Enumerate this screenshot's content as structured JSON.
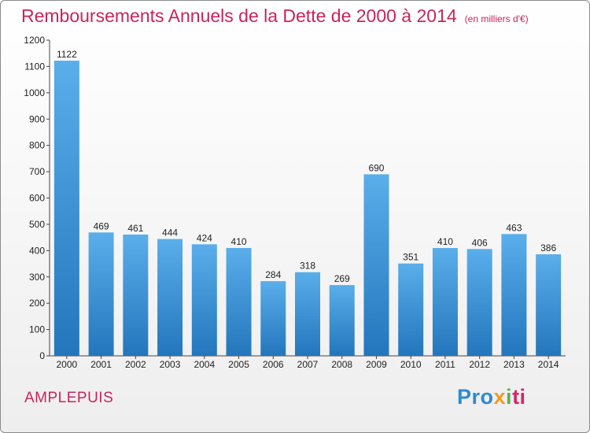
{
  "page": {
    "title": "Remboursements Annuels de la Dette de 2000 à 2014",
    "unit": "(en milliers d'€)",
    "commune": "AMPLEPUIS",
    "logo": {
      "p1": "Pro",
      "p2": "x",
      "p3": "i",
      "p4": "ti"
    }
  },
  "chart_data": {
    "type": "bar",
    "title": "Remboursements Annuels de la Dette de 2000 à 2014",
    "xlabel": "",
    "ylabel": "",
    "categories": [
      "2000",
      "2001",
      "2002",
      "2003",
      "2004",
      "2005",
      "2006",
      "2007",
      "2008",
      "2009",
      "2010",
      "2011",
      "2012",
      "2013",
      "2014"
    ],
    "values": [
      1122,
      469,
      461,
      444,
      424,
      410,
      284,
      318,
      269,
      690,
      351,
      410,
      406,
      463,
      386
    ],
    "ylim": [
      0,
      1200
    ],
    "yticks": [
      0,
      100,
      200,
      300,
      400,
      500,
      600,
      700,
      800,
      900,
      1000,
      1100,
      1200
    ],
    "grid": false,
    "colors": {
      "bar_top": "#5aaeea",
      "bar_bottom": "#2376bc",
      "title": "#c8245e"
    }
  }
}
